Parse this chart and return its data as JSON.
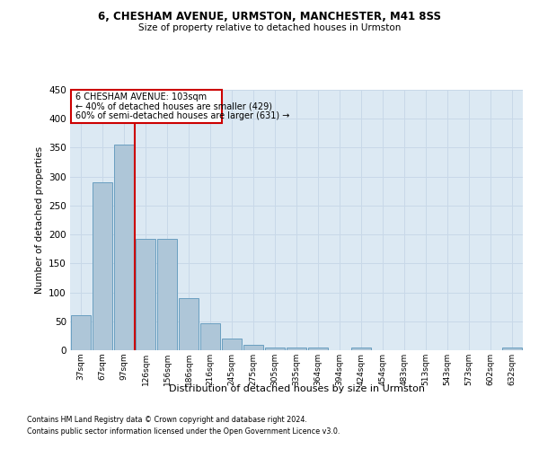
{
  "title1": "6, CHESHAM AVENUE, URMSTON, MANCHESTER, M41 8SS",
  "title2": "Size of property relative to detached houses in Urmston",
  "xlabel": "Distribution of detached houses by size in Urmston",
  "ylabel": "Number of detached properties",
  "categories": [
    "37sqm",
    "67sqm",
    "97sqm",
    "126sqm",
    "156sqm",
    "186sqm",
    "216sqm",
    "245sqm",
    "275sqm",
    "305sqm",
    "335sqm",
    "364sqm",
    "394sqm",
    "424sqm",
    "454sqm",
    "483sqm",
    "513sqm",
    "543sqm",
    "573sqm",
    "602sqm",
    "632sqm"
  ],
  "values": [
    60,
    290,
    355,
    192,
    192,
    90,
    47,
    20,
    9,
    5,
    5,
    5,
    0,
    5,
    0,
    0,
    0,
    0,
    0,
    0,
    5
  ],
  "bar_color": "#aec6d8",
  "bar_edge_color": "#6a9fc0",
  "grid_color": "#c8d8e8",
  "background_color": "#ffffff",
  "axes_bg_color": "#dce9f3",
  "annotation_box_color": "#ffffff",
  "annotation_border_color": "#cc0000",
  "vline_color": "#cc0000",
  "vline_index": 2,
  "annotation_line1": "6 CHESHAM AVENUE: 103sqm",
  "annotation_line2": "← 40% of detached houses are smaller (429)",
  "annotation_line3": "60% of semi-detached houses are larger (631) →",
  "footer1": "Contains HM Land Registry data © Crown copyright and database right 2024.",
  "footer2": "Contains public sector information licensed under the Open Government Licence v3.0.",
  "ylim": [
    0,
    450
  ],
  "yticks": [
    0,
    50,
    100,
    150,
    200,
    250,
    300,
    350,
    400,
    450
  ]
}
